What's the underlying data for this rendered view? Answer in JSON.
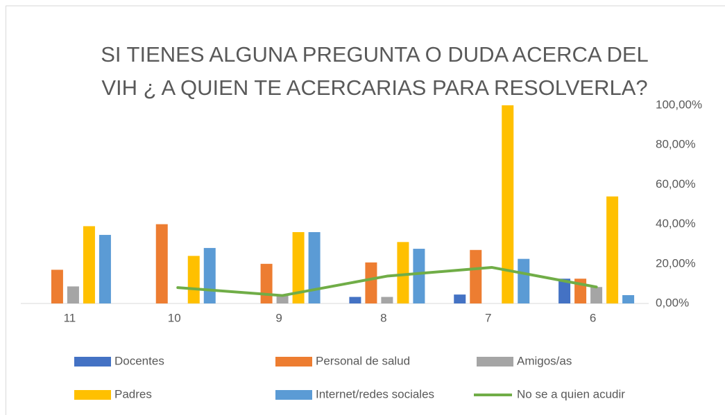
{
  "chart_data": {
    "type": "bar",
    "title": "SI TIENES ALGUNA PREGUNTA O DUDA ACERCA DEL VIH ¿ A QUIEN TE ACERCARIAS PARA RESOLVERLA?",
    "categories": [
      "11",
      "10",
      "9",
      "8",
      "7",
      "6"
    ],
    "series": [
      {
        "name": "Docentes",
        "color": "#4472c4",
        "values": [
          0,
          0,
          0,
          3.3,
          4.5,
          12.5
        ]
      },
      {
        "name": "Personal de salud",
        "color": "#ed7d31",
        "values": [
          17,
          40,
          20,
          20.7,
          27,
          12.5
        ]
      },
      {
        "name": "Amigos/as",
        "color": "#a5a5a5",
        "values": [
          8.6,
          0,
          4,
          3.3,
          0,
          8.3
        ]
      },
      {
        "name": "Padres",
        "color": "#ffc000",
        "values": [
          39,
          24,
          36,
          31,
          100,
          54
        ]
      },
      {
        "name": "Internet/redes sociales",
        "color": "#5b9bd5",
        "values": [
          34.6,
          28,
          36,
          27.6,
          22.5,
          4.2
        ]
      },
      {
        "name": "No se a quien acudir",
        "color": "#70ad47",
        "type": "line",
        "values": [
          null,
          8,
          4,
          13.8,
          18.2,
          8.3
        ]
      }
    ],
    "ylim": [
      0,
      100
    ],
    "yticks": [
      {
        "value": 0,
        "label": "0,00%"
      },
      {
        "value": 20,
        "label": "20,00%"
      },
      {
        "value": 40,
        "label": "40,00%"
      },
      {
        "value": 60,
        "label": "60,00%"
      },
      {
        "value": 80,
        "label": "80,00%"
      },
      {
        "value": 100,
        "label": "100,00%"
      }
    ],
    "grid": false
  }
}
